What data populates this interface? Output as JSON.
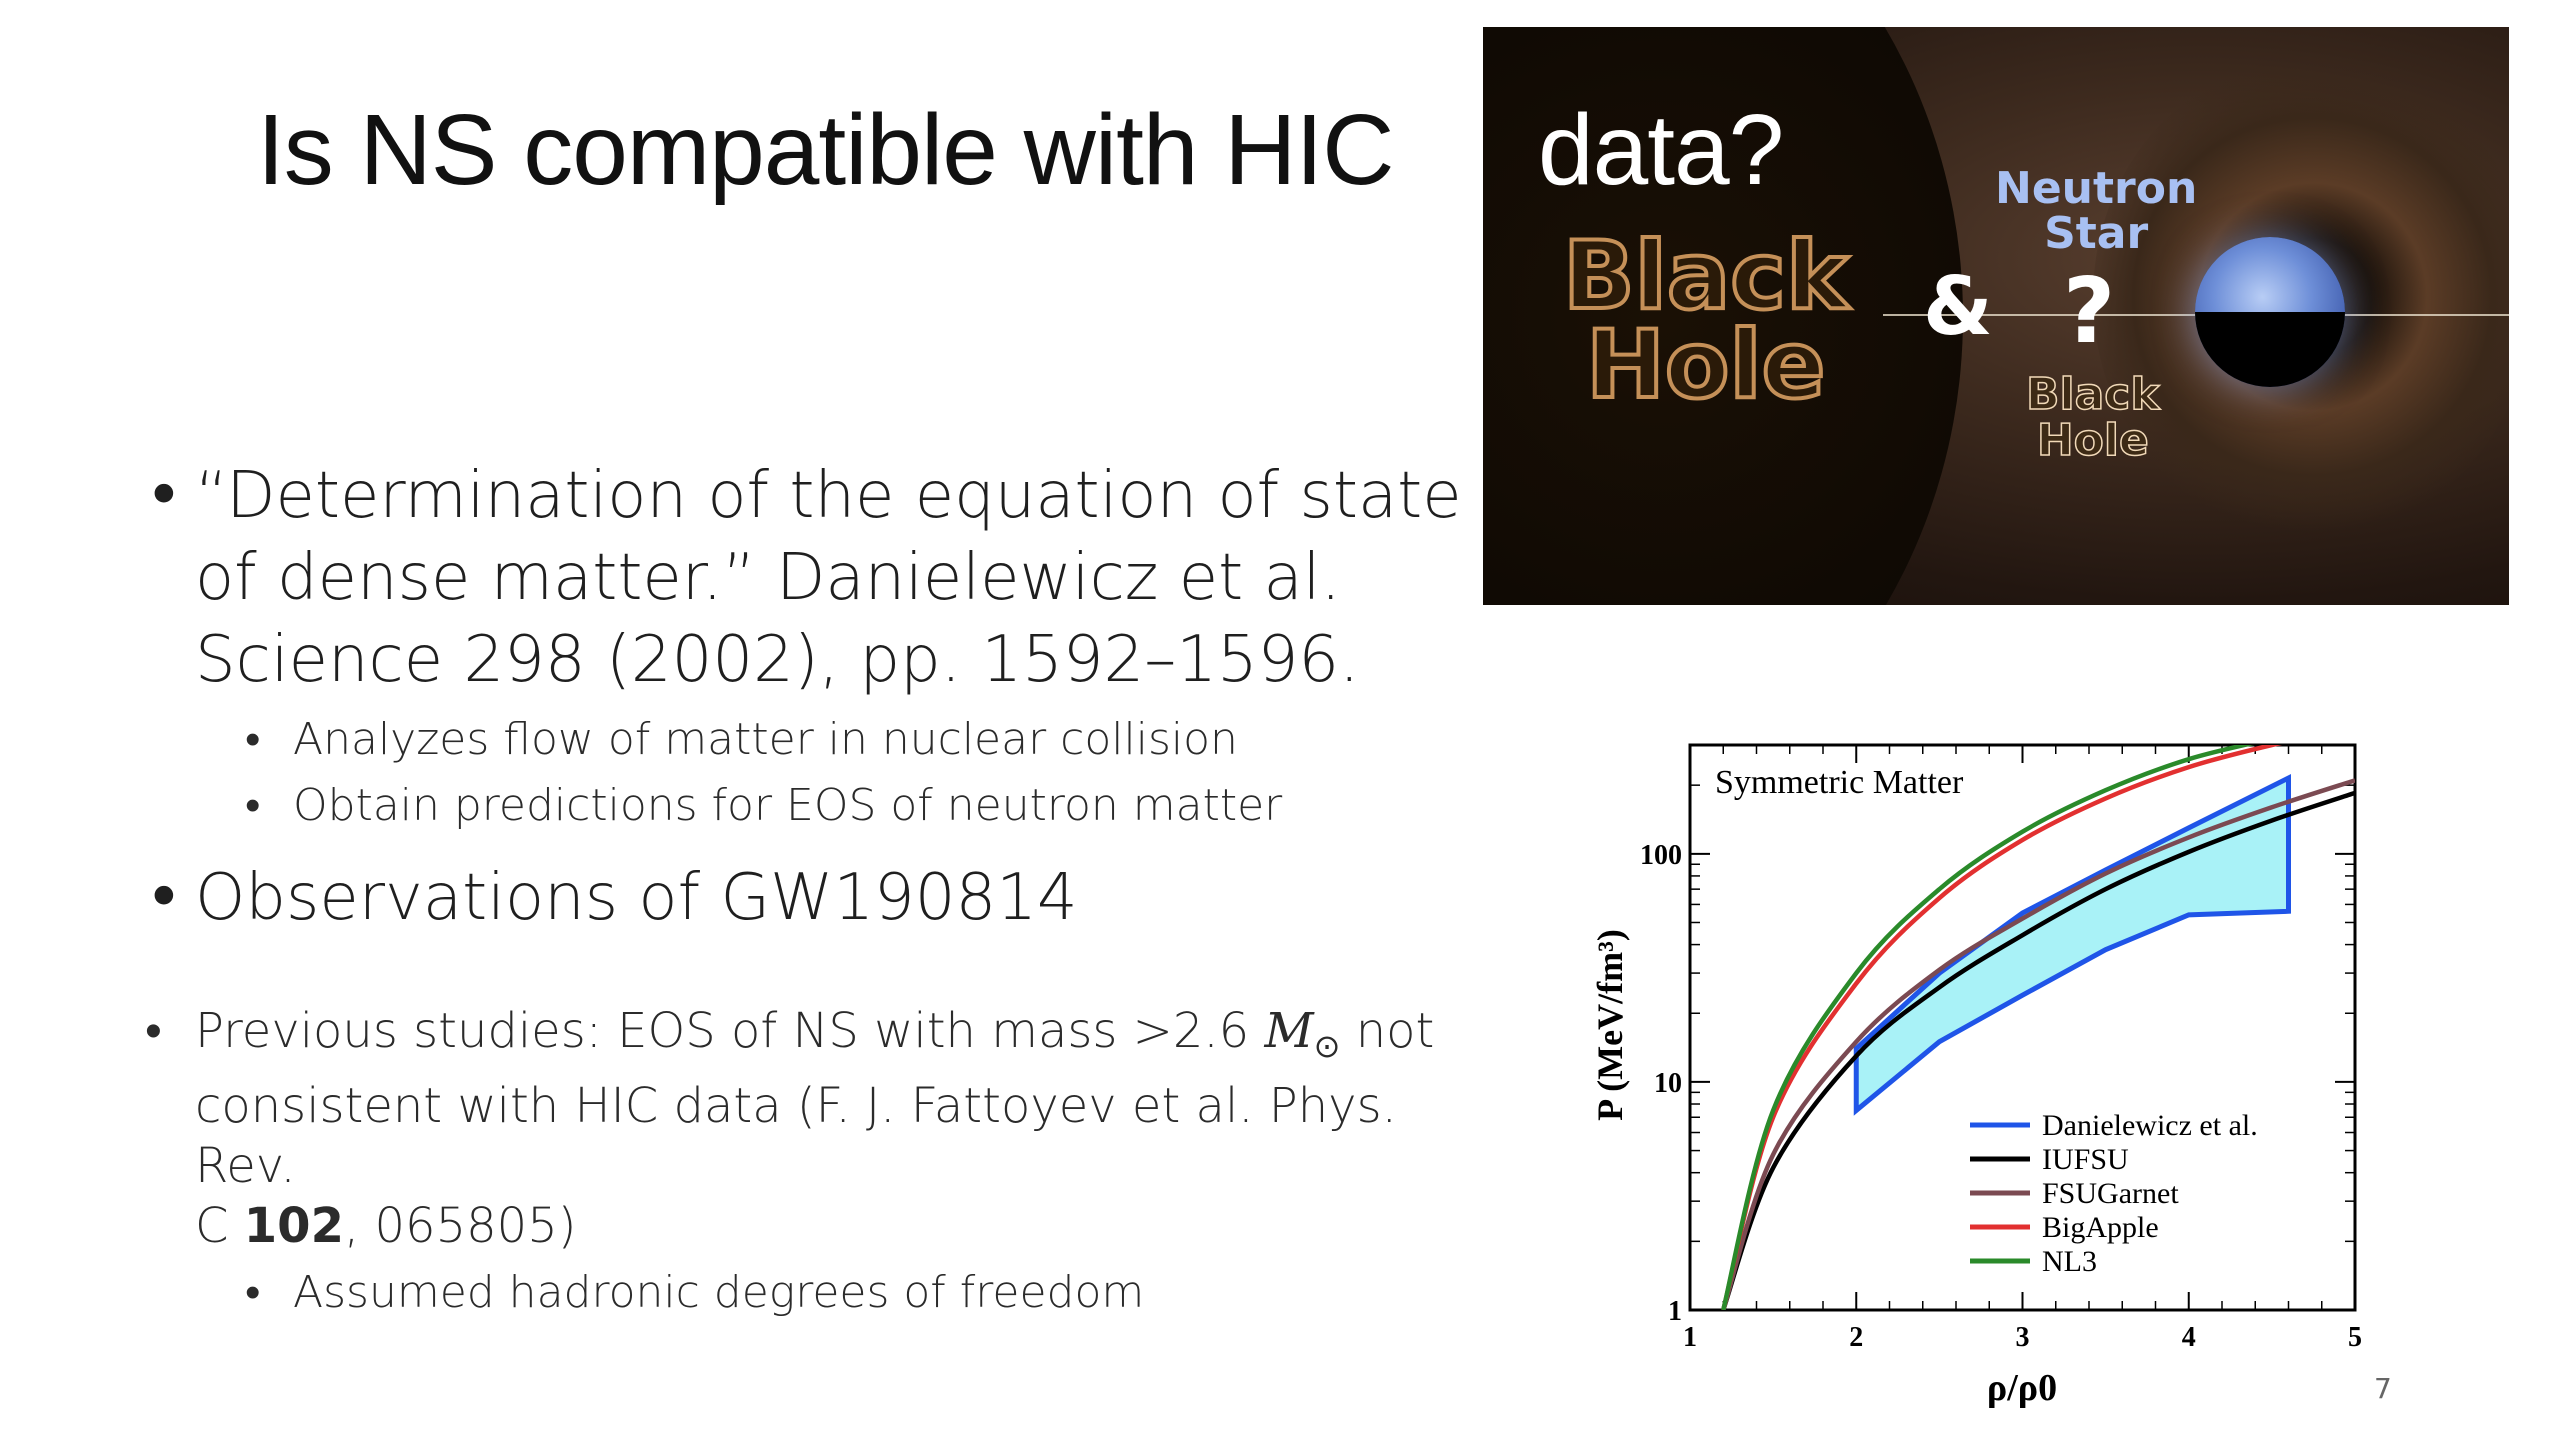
{
  "title": {
    "before_image": "Is NS compatible with HIC",
    "on_image": "data?"
  },
  "bullets": {
    "b1_line1": "“Determination of the equation of state",
    "b1_line2": "of dense matter.” Danielewicz et al.",
    "b1_line3": "Science 298 (2002), pp. 1592–1596.",
    "b1_sub1": "Analyzes flow of matter in nuclear collision",
    "b1_sub2": "Obtain predictions for EOS of neutron matter",
    "b2": "Observations of GW190814",
    "b3_line1_pre": "Previous studies: EOS of NS with mass >2.6 ",
    "b3_msun": "M",
    "b3_odot": "⊙",
    "b3_line1_post": " not",
    "b3_line2": "consistent with HIC data (F. J. Fattoyev et al. Phys. Rev.",
    "b3_line3_pre": "C ",
    "b3_line3_bold": "102",
    "b3_line3_post": ", 065805)",
    "b3_sub1": "Assumed hadronic degrees of freedom"
  },
  "photo": {
    "black_hole_big_1": "Black",
    "black_hole_big_2": "Hole",
    "ampersand": "&",
    "question": "?",
    "neutron": "Neutron",
    "star": "Star",
    "black_hole_small_1": "Black",
    "black_hole_small_2": "Hole"
  },
  "chart_data": {
    "type": "line",
    "title": "Symmetric Matter",
    "xlabel": "ρ/ρ0",
    "ylabel": "P (MeV/fm³)",
    "xlim": [
      1,
      5
    ],
    "ylim": [
      1,
      300
    ],
    "ylog": true,
    "xticks": [
      "1",
      "2",
      "3",
      "4",
      "5"
    ],
    "yticks": [
      "1",
      "10",
      "100"
    ],
    "legend_position": "bottom-right",
    "series": [
      {
        "name": "IUFSU",
        "color": "#000000",
        "x": [
          1.2,
          1.5,
          2,
          2.5,
          3,
          3.5,
          4,
          4.5,
          5
        ],
        "y": [
          1.0,
          4.2,
          13,
          26,
          44,
          70,
          102,
          140,
          185
        ]
      },
      {
        "name": "FSUGarnet",
        "color": "#7b4a52",
        "x": [
          1.2,
          1.5,
          2,
          2.5,
          3,
          3.5,
          4,
          4.5,
          5
        ],
        "y": [
          1.0,
          4.8,
          15,
          31,
          52,
          82,
          118,
          160,
          210
        ]
      },
      {
        "name": "BigApple",
        "color": "#e23030",
        "x": [
          1.2,
          1.5,
          2,
          2.5,
          3,
          3.5,
          4,
          4.5,
          4.8
        ],
        "y": [
          1.0,
          7,
          27,
          64,
          115,
          175,
          240,
          300,
          330
        ]
      },
      {
        "name": "NL3",
        "color": "#2a8a2a",
        "x": [
          1.2,
          1.5,
          2,
          2.5,
          3,
          3.5,
          4,
          4.5,
          4.7
        ],
        "y": [
          1.0,
          7.5,
          30,
          70,
          125,
          190,
          260,
          320,
          350
        ]
      }
    ],
    "band": {
      "name": "Danielewicz et al.",
      "color": "#1f55e8",
      "fill": "#63e8f0",
      "upper": {
        "x": [
          2,
          2.5,
          3,
          3.5,
          4,
          4.6
        ],
        "y": [
          14,
          30,
          55,
          85,
          130,
          215
        ]
      },
      "lower": {
        "x": [
          2,
          2.5,
          3,
          3.5,
          4,
          4.6
        ],
        "y": [
          7.5,
          15,
          24,
          38,
          54,
          56
        ]
      }
    }
  },
  "page_number": "7"
}
